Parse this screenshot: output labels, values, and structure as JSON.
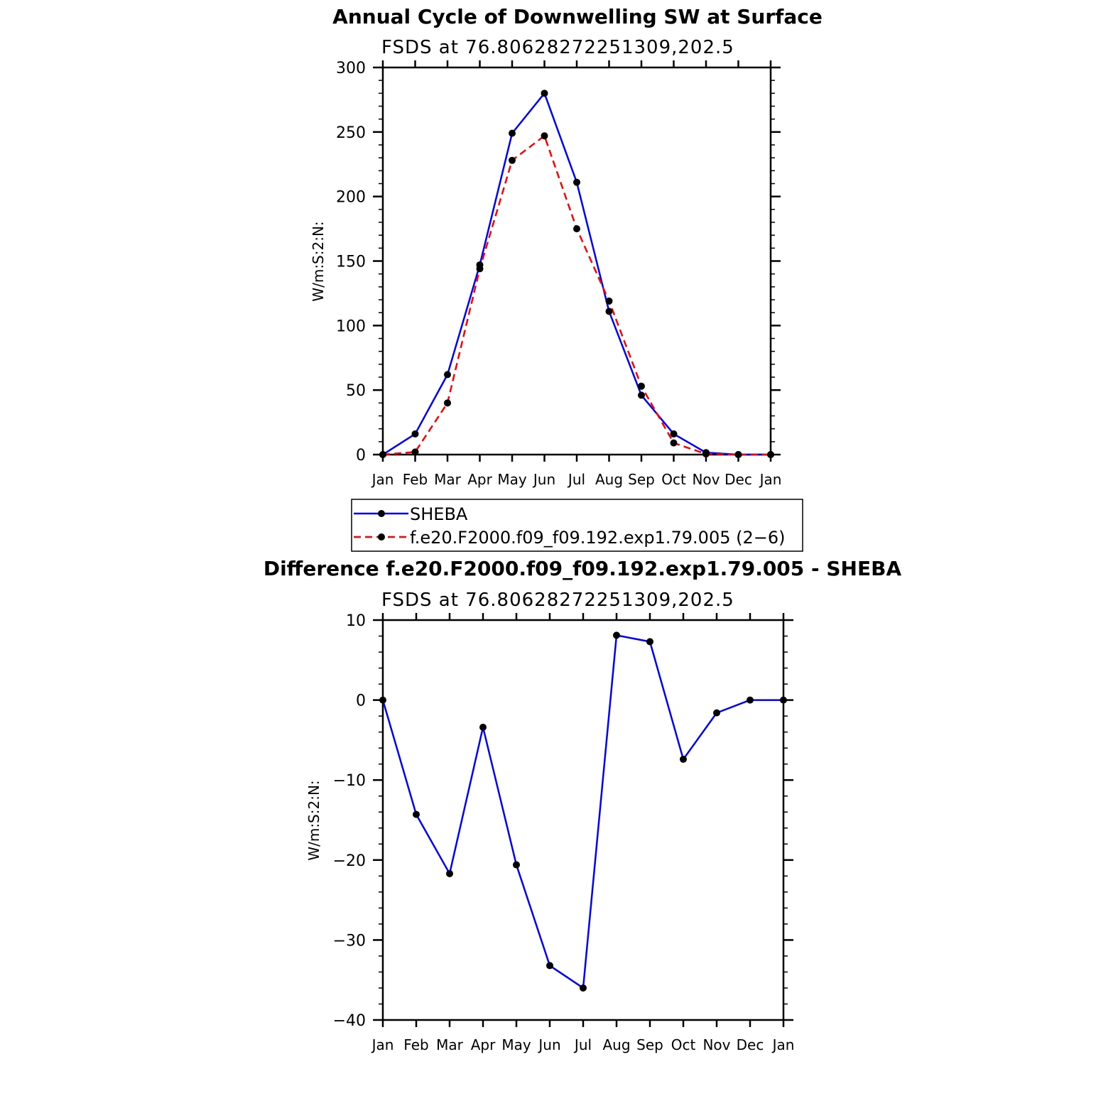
{
  "charts": {
    "top": {
      "title": "Annual Cycle of Downwelling SW at Surface",
      "subtitle": "FSDS at 76.80628272251309,202.5",
      "ylabel": "W/m:S:2:N:",
      "legend": {
        "sheba": "SHEBA",
        "model": "f.e20.F2000.f09_f09.192.exp1.79.005 (2−6)"
      }
    },
    "bottom": {
      "title": "Difference f.e20.F2000.f09_f09.192.exp1.79.005 - SHEBA",
      "subtitle": "FSDS at 76.80628272251309,202.5",
      "ylabel": "W/m:S:2:N:"
    }
  },
  "chart_data": [
    {
      "type": "line",
      "title": "Annual Cycle of Downwelling SW at Surface",
      "subtitle": "FSDS at 76.80628272251309,202.5",
      "xlabel": "",
      "ylabel": "W/m:S:2:N:",
      "categories": [
        "Jan",
        "Feb",
        "Mar",
        "Apr",
        "May",
        "Jun",
        "Jul",
        "Aug",
        "Sep",
        "Oct",
        "Nov",
        "Dec",
        "Jan"
      ],
      "ylim": [
        0,
        300
      ],
      "yticks": [
        0,
        50,
        100,
        150,
        200,
        250,
        300
      ],
      "legend_position": "below",
      "series": [
        {
          "name": "SHEBA",
          "color": "#0000ff",
          "dash": "solid",
          "values": [
            0,
            16,
            62,
            147,
            249,
            280,
            211,
            111,
            46,
            16,
            1.5,
            0,
            0
          ]
        },
        {
          "name": "f.e20.F2000.f09_f09.192.exp1.79.005 (2−6)",
          "color": "#ff0000",
          "dash": "dashed",
          "values": [
            0,
            2,
            40,
            144,
            228,
            247,
            175,
            119,
            53,
            9,
            0.5,
            0,
            0
          ]
        }
      ]
    },
    {
      "type": "line",
      "title": "Difference f.e20.F2000.f09_f09.192.exp1.79.005 - SHEBA",
      "subtitle": "FSDS at 76.80628272251309,202.5",
      "xlabel": "",
      "ylabel": "W/m:S:2:N:",
      "categories": [
        "Jan",
        "Feb",
        "Mar",
        "Apr",
        "May",
        "Jun",
        "Jul",
        "Aug",
        "Sep",
        "Oct",
        "Nov",
        "Dec",
        "Jan"
      ],
      "ylim": [
        -40,
        10
      ],
      "yticks": [
        -40,
        -30,
        -20,
        -10,
        0,
        10
      ],
      "series": [
        {
          "color": "#0000ff",
          "dash": "solid",
          "values": [
            0,
            -14.3,
            -21.7,
            -3.4,
            -20.6,
            -33.2,
            -36,
            8.1,
            7.3,
            -7.4,
            -1.6,
            0,
            0
          ]
        }
      ]
    }
  ]
}
